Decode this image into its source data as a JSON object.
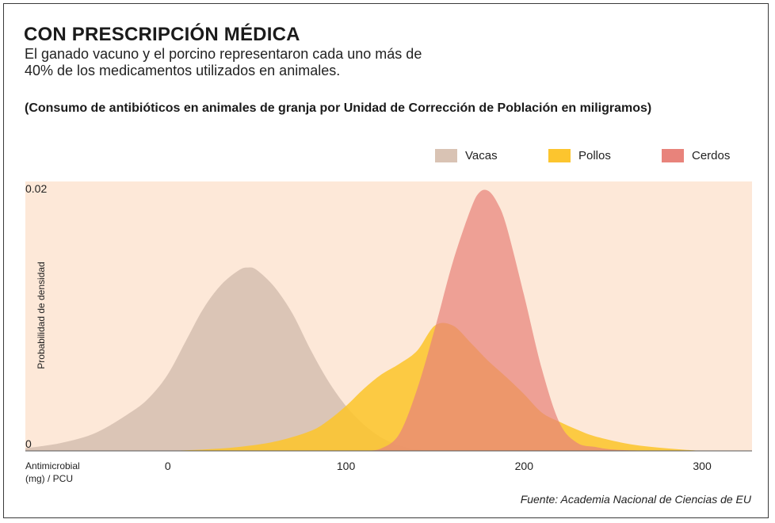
{
  "header": {
    "title": "CON PRESCRIPCIÓN MÉDICA",
    "subtitle": "El ganado vacuno y el porcino representaron cada uno más de 40% de los medicamentos utilizados en animales.",
    "chart_title": "(Consumo de antibióticos en animales de granja por Unidad de Corrección de Población en miligramos)"
  },
  "source": "Fuente: Academia Nacional de Ciencias de EU",
  "colors": {
    "plot_bg": "#fde8d8",
    "vacas": "#d9c3b4",
    "pollos": "#fcc52e",
    "cerdos": "#e8837b",
    "overlap": "#e8882c"
  },
  "chart_data": {
    "type": "area",
    "title": "(Consumo de antibióticos en animales de granja por Unidad de Corrección de Población en miligramos)",
    "xlabel": "Antimicrobial (mg) / PCU",
    "ylabel": "Probabilidad de densidad",
    "xlim": [
      -80,
      328
    ],
    "ylim": [
      0,
      0.02
    ],
    "x_ticks": [
      "0",
      "100",
      "200",
      "300"
    ],
    "x_tick_values": [
      0,
      100,
      200,
      300
    ],
    "y_ticks": [
      "0.02",
      "0"
    ],
    "y_tick_values": [
      0.02,
      0
    ],
    "legend_position": "top-right",
    "grid": false,
    "series": [
      {
        "name": "Vacas",
        "x": [
          -80,
          -60,
          -40,
          -20,
          -10,
          0,
          10,
          20,
          30,
          40,
          45,
          50,
          60,
          70,
          80,
          90,
          100,
          110,
          120,
          130,
          140,
          150
        ],
        "values": [
          0.0002,
          0.0006,
          0.0014,
          0.003,
          0.0041,
          0.0058,
          0.0083,
          0.0108,
          0.0126,
          0.0137,
          0.0139,
          0.0137,
          0.0124,
          0.0104,
          0.0077,
          0.0053,
          0.0034,
          0.002,
          0.001,
          0.0004,
          0.0001,
          0
        ]
      },
      {
        "name": "Pollos",
        "x": [
          0,
          20,
          40,
          60,
          80,
          90,
          100,
          110,
          120,
          130,
          140,
          150,
          160,
          170,
          180,
          190,
          200,
          210,
          220,
          230,
          240,
          260,
          280,
          300
        ],
        "values": [
          0,
          0.0001,
          0.0003,
          0.0007,
          0.0015,
          0.0023,
          0.0034,
          0.0047,
          0.0058,
          0.0066,
          0.0076,
          0.0095,
          0.0095,
          0.0082,
          0.0068,
          0.0056,
          0.0043,
          0.0029,
          0.0022,
          0.0016,
          0.0011,
          0.0005,
          0.0002,
          0
        ]
      },
      {
        "name": "Cerdos",
        "x": [
          110,
          120,
          130,
          140,
          150,
          160,
          170,
          175,
          180,
          185,
          190,
          200,
          210,
          220,
          230,
          240,
          250,
          270
        ],
        "values": [
          0,
          0.0002,
          0.0013,
          0.0047,
          0.0093,
          0.0143,
          0.0183,
          0.0196,
          0.0197,
          0.0188,
          0.0171,
          0.0118,
          0.0062,
          0.0021,
          0.0006,
          0.0003,
          0.0001,
          0
        ]
      }
    ]
  }
}
